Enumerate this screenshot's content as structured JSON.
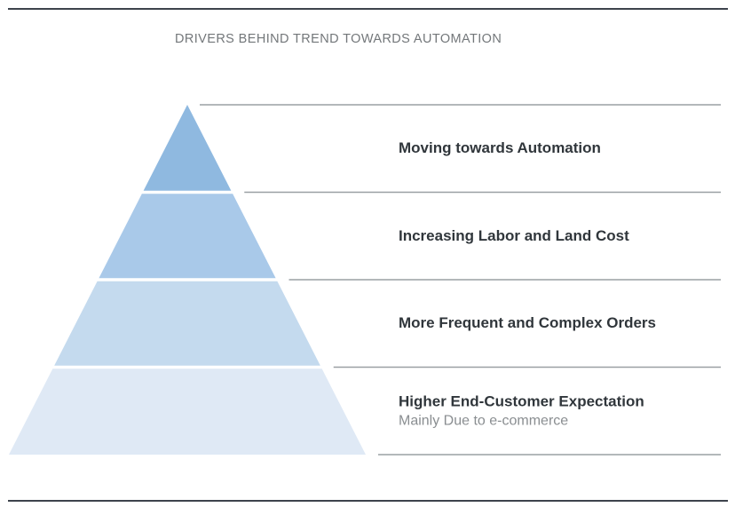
{
  "title": "DRIVERS BEHIND TREND TOWARDS AUTOMATION",
  "colors": {
    "page_background": "#ffffff",
    "dark_rule": "#3d434c",
    "separator_line": "#9aa0a4",
    "title_text": "#73777a",
    "label_text": "#30363b",
    "sublabel_text": "#8a8e91"
  },
  "pyramid": {
    "layers": [
      {
        "label": "Moving towards Automation",
        "sublabel": "",
        "color": "#8fb9e0"
      },
      {
        "label": "Increasing Labor and Land Cost",
        "sublabel": "",
        "color": "#a9c9e9"
      },
      {
        "label": "More Frequent and Complex Orders",
        "sublabel": "",
        "color": "#c4daee"
      },
      {
        "label": "Higher End-Customer Expectation",
        "sublabel": "Mainly Due to e-commerce",
        "color": "#dfe9f5"
      }
    ]
  }
}
